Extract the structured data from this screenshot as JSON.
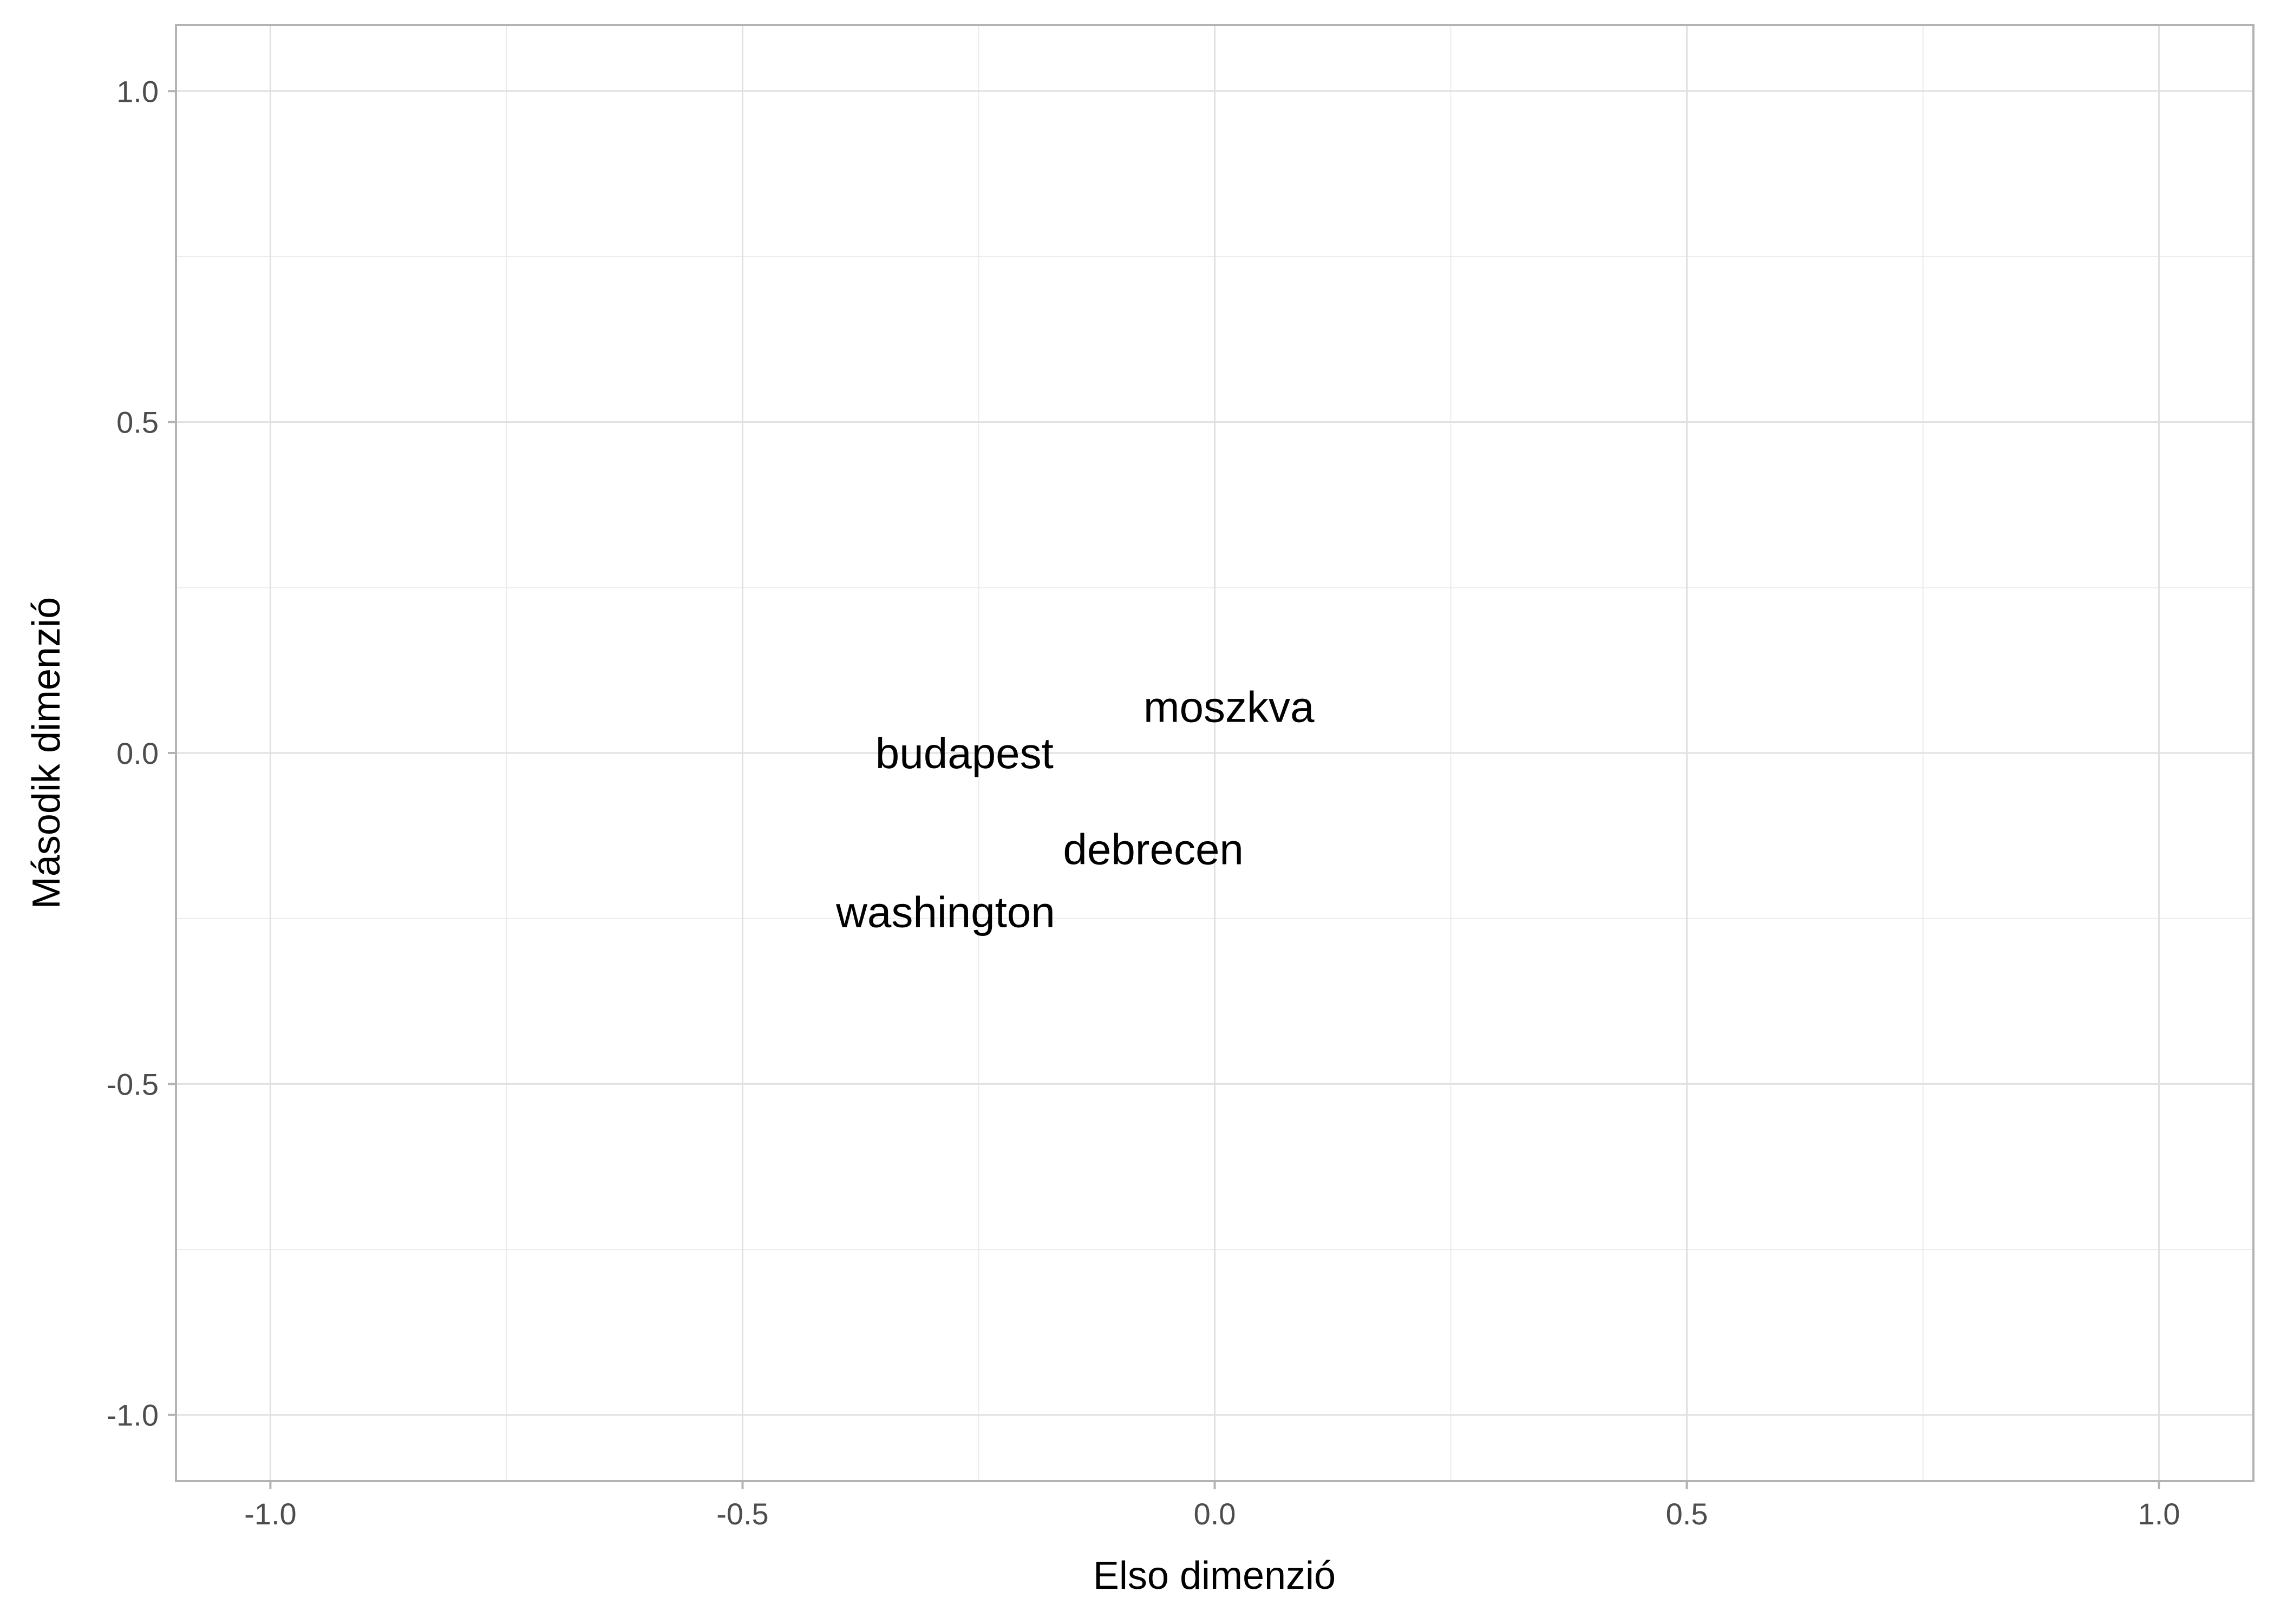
{
  "chart_data": {
    "type": "scatter",
    "xlabel": "Elso dimenzió",
    "ylabel": "Második dimenzió",
    "xlim": [
      -1.1,
      1.1
    ],
    "ylim": [
      -1.1,
      1.1
    ],
    "x_ticks": [
      -1.0,
      -0.5,
      0.0,
      0.5,
      1.0
    ],
    "y_ticks": [
      -1.0,
      -0.5,
      0.0,
      0.5,
      1.0
    ],
    "x_tick_labels": [
      "-1.0",
      "-0.5",
      "0.0",
      "0.5",
      "1.0"
    ],
    "y_tick_labels": [
      "-1.0",
      "-0.5",
      "0.0",
      "0.5",
      "1.0"
    ],
    "grid": true,
    "points": [
      {
        "label": "moszkva",
        "x": 0.015,
        "y": 0.07
      },
      {
        "label": "budapest",
        "x": -0.265,
        "y": 0.0
      },
      {
        "label": "debrecen",
        "x": -0.065,
        "y": -0.145
      },
      {
        "label": "washington",
        "x": -0.285,
        "y": -0.24
      }
    ]
  }
}
